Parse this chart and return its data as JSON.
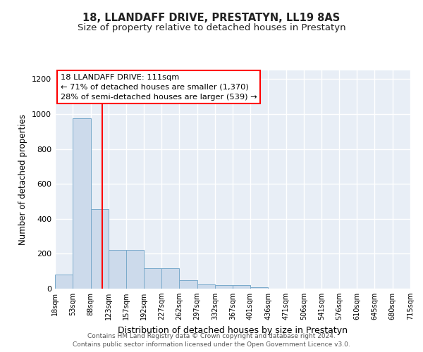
{
  "title": "18, LLANDAFF DRIVE, PRESTATYN, LL19 8AS",
  "subtitle": "Size of property relative to detached houses in Prestatyn",
  "xlabel": "Distribution of detached houses by size in Prestatyn",
  "ylabel": "Number of detached properties",
  "annotation_title": "18 LLANDAFF DRIVE: 111sqm",
  "annotation_line1": "← 71% of detached houses are smaller (1,370)",
  "annotation_line2": "28% of semi-detached houses are larger (539) →",
  "footer_line1": "Contains HM Land Registry data © Crown copyright and database right 2024.",
  "footer_line2": "Contains public sector information licensed under the Open Government Licence v3.0.",
  "bin_edges": [
    18,
    53,
    88,
    123,
    157,
    192,
    227,
    262,
    297,
    332,
    367,
    401,
    436,
    471,
    506,
    541,
    576,
    610,
    645,
    680,
    715
  ],
  "bar_heights": [
    80,
    975,
    455,
    220,
    220,
    115,
    115,
    50,
    25,
    20,
    20,
    10,
    0,
    0,
    0,
    0,
    0,
    0,
    0,
    0
  ],
  "bar_color": "#ccdaeb",
  "bar_edge_color": "#7aaacb",
  "red_line_x": 111,
  "background_color": "#e8eef6",
  "plot_bg_color": "#e8eef6",
  "grid_color": "#ffffff",
  "ylim": [
    0,
    1250
  ],
  "yticks": [
    0,
    200,
    400,
    600,
    800,
    1000,
    1200
  ],
  "title_fontsize": 10.5,
  "subtitle_fontsize": 9.5,
  "ylabel_fontsize": 8.5,
  "xlabel_fontsize": 9,
  "footer_fontsize": 6.5,
  "annot_fontsize": 8.2
}
